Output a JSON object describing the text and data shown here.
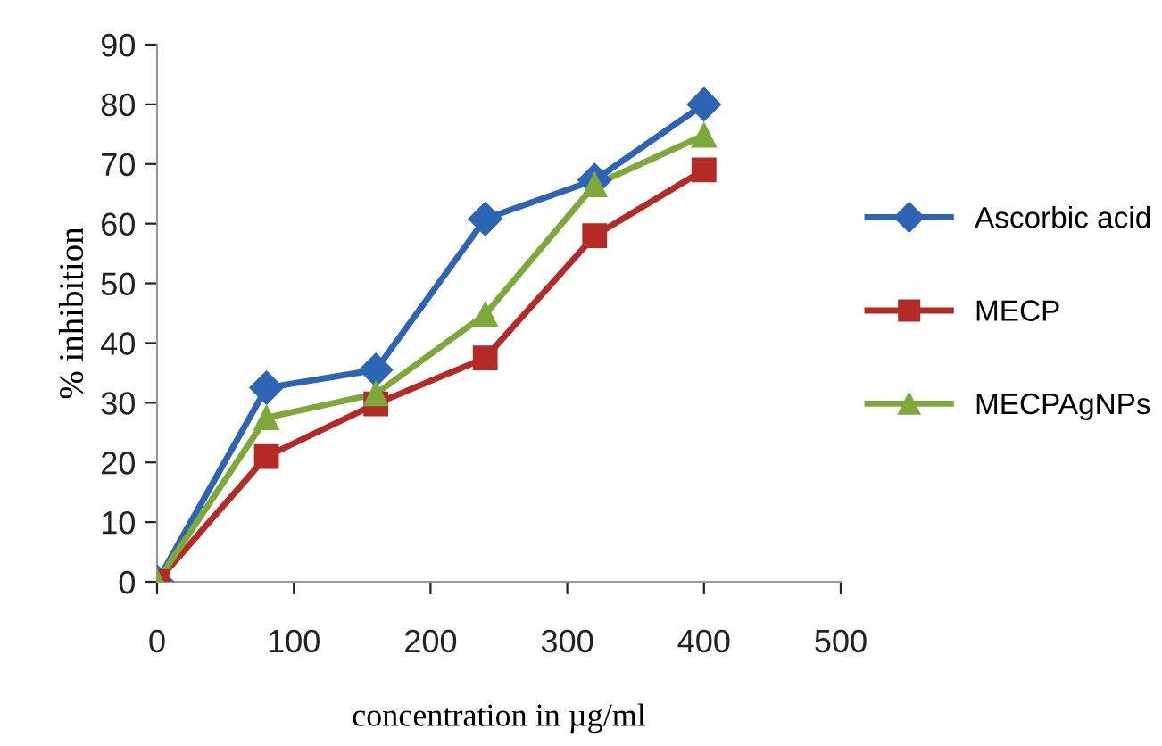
{
  "chart_data": {
    "type": "line",
    "xlabel": "concentration in µg/ml",
    "ylabel": "% inhibition",
    "x": [
      0,
      80,
      160,
      240,
      320,
      400
    ],
    "series": [
      {
        "name": "Ascorbic acid",
        "color": "#2e64b4",
        "values": [
          0,
          32.5,
          35.5,
          60.8,
          67.3,
          80
        ],
        "marker": "diamond"
      },
      {
        "name": "MECP",
        "color": "#b42a26",
        "values": [
          0,
          21,
          29.8,
          37.5,
          58,
          69
        ],
        "marker": "square"
      },
      {
        "name": "MECPAgNPs",
        "color": "#7ea83a",
        "values": [
          0,
          27.5,
          31.5,
          44.8,
          66.5,
          74.8
        ],
        "marker": "triangle"
      }
    ],
    "xlim": [
      0,
      500
    ],
    "xticks": [
      0,
      100,
      200,
      300,
      400,
      500
    ],
    "ylim": [
      0,
      90
    ],
    "yticks": [
      0,
      10,
      20,
      30,
      40,
      50,
      60,
      70,
      80,
      90
    ],
    "grid": false,
    "legend": "right",
    "line_style": "solid"
  }
}
